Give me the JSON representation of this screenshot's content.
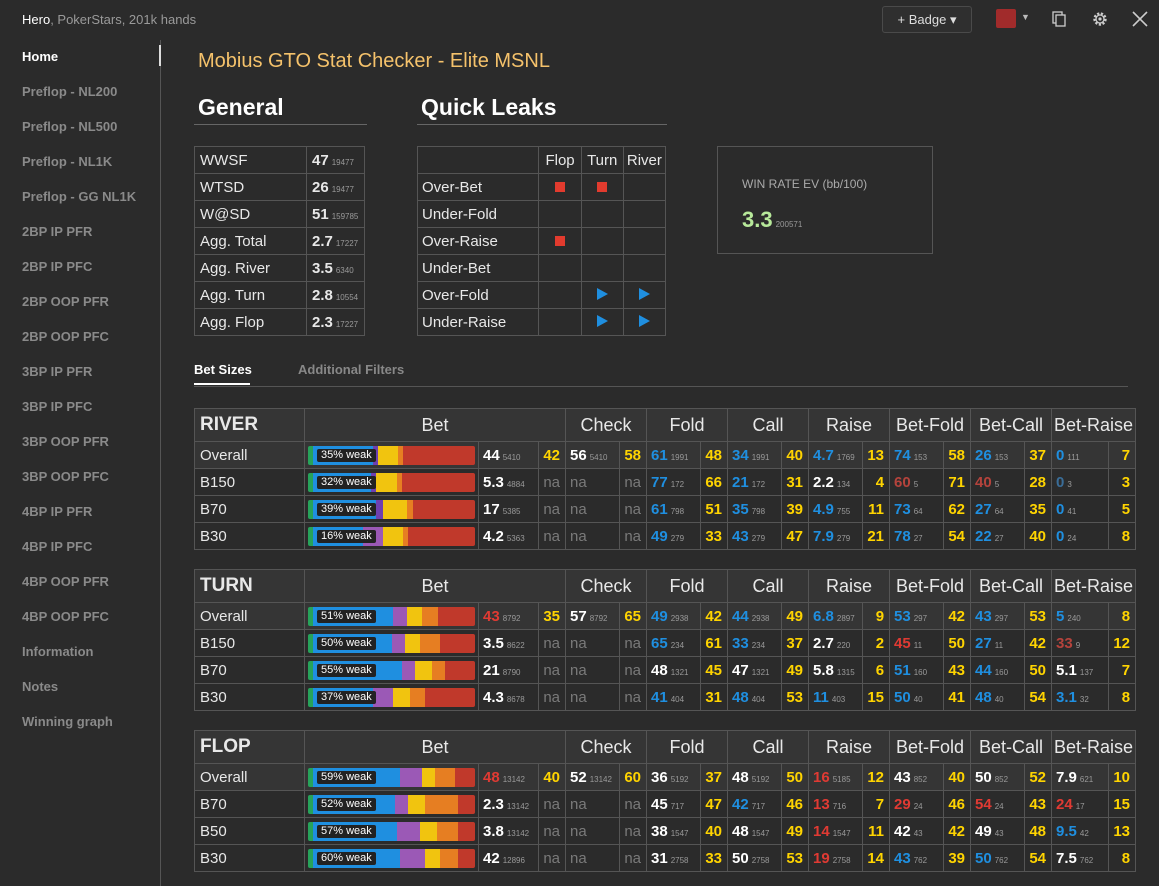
{
  "header": {
    "player": "Hero",
    "player_sub": ", PokerStars, 201k hands",
    "badge_label": "+ Badge ▾",
    "badge_color": "#a12b2b",
    "icons": [
      "copy-icon",
      "gear-icon",
      "close-icon"
    ]
  },
  "sidebar": {
    "items": [
      "Home",
      "Preflop - NL200",
      "Preflop - NL500",
      "Preflop - NL1K",
      "Preflop - GG NL1K",
      "2BP IP PFR",
      "2BP IP PFC",
      "2BP OOP PFR",
      "2BP OOP PFC",
      "3BP IP PFR",
      "3BP IP PFC",
      "3BP OOP PFR",
      "3BP OOP PFC",
      "4BP IP PFR",
      "4BP IP PFC",
      "4BP OOP PFR",
      "4BP OOP PFC",
      "Information",
      "Notes",
      "Winning graph"
    ],
    "active": "Home"
  },
  "page_title": "Mobius GTO Stat Checker - Elite MSNL",
  "general": {
    "title": "General",
    "rows": [
      {
        "label": "WWSF",
        "value": "47",
        "n": "19477"
      },
      {
        "label": "WTSD",
        "value": "26",
        "n": "19477"
      },
      {
        "label": "W@SD",
        "value": "51",
        "n": "159785"
      },
      {
        "label": "Agg. Total",
        "value": "2.7",
        "n": "17227"
      },
      {
        "label": "Agg. River",
        "value": "3.5",
        "n": "6340"
      },
      {
        "label": "Agg. Turn",
        "value": "2.8",
        "n": "10554"
      },
      {
        "label": "Agg. Flop",
        "value": "2.3",
        "n": "17227"
      }
    ]
  },
  "quick_leaks": {
    "title": "Quick Leaks",
    "columns": [
      "Flop",
      "Turn",
      "River"
    ],
    "rows": [
      {
        "label": "Over-Bet",
        "marks": [
          "sq",
          "sq",
          ""
        ]
      },
      {
        "label": "Under-Fold",
        "marks": [
          "",
          "",
          ""
        ]
      },
      {
        "label": "Over-Raise",
        "marks": [
          "sq",
          "",
          ""
        ]
      },
      {
        "label": "Under-Bet",
        "marks": [
          "",
          "",
          ""
        ]
      },
      {
        "label": "Over-Fold",
        "marks": [
          "",
          "tri",
          "tri"
        ]
      },
      {
        "label": "Under-Raise",
        "marks": [
          "",
          "tri",
          "tri"
        ]
      }
    ]
  },
  "winrate": {
    "label": "WIN RATE EV (bb/100)",
    "value": "3.3",
    "n": "200571"
  },
  "tabs": {
    "active": "Bet Sizes",
    "other": "Additional Filters"
  },
  "stat_headers": [
    "Bet",
    "Check",
    "Fold",
    "Call",
    "Raise",
    "Bet-Fold",
    "Bet-Call",
    "Bet-Raise"
  ],
  "streets": [
    {
      "name": "RIVER",
      "rows": [
        {
          "label": "Overall",
          "weak": "35% weak",
          "bet": [
            "44",
            "5410",
            "w",
            "42"
          ],
          "check": [
            "56",
            "5410",
            "w",
            "58"
          ],
          "fold": [
            "61",
            "1991",
            "b",
            "48"
          ],
          "call": [
            "34",
            "1991",
            "b",
            "40"
          ],
          "raise": [
            "4.7",
            "1769",
            "b",
            "13"
          ],
          "betfold": [
            "74",
            "153",
            "b",
            "58"
          ],
          "betcall": [
            "26",
            "153",
            "b",
            "37"
          ],
          "betraise": [
            "0",
            "111",
            "b",
            "7"
          ]
        },
        {
          "label": "B150",
          "weak": "32% weak",
          "bet": [
            "5.3",
            "4884",
            "w",
            "na"
          ],
          "check": [
            "na",
            "",
            "na",
            "na"
          ],
          "fold": [
            "77",
            "172",
            "b",
            "66"
          ],
          "call": [
            "21",
            "172",
            "b",
            "31"
          ],
          "raise": [
            "2.2",
            "134",
            "w",
            "4"
          ],
          "betfold": [
            "60",
            "5",
            "dr",
            "71"
          ],
          "betcall": [
            "40",
            "5",
            "dr",
            "28"
          ],
          "betraise": [
            "0",
            "3",
            "gb",
            "3"
          ]
        },
        {
          "label": "B70",
          "weak": "39% weak",
          "bet": [
            "17",
            "5385",
            "w",
            "na"
          ],
          "check": [
            "na",
            "",
            "na",
            "na"
          ],
          "fold": [
            "61",
            "798",
            "b",
            "51"
          ],
          "call": [
            "35",
            "798",
            "b",
            "39"
          ],
          "raise": [
            "4.9",
            "755",
            "b",
            "11"
          ],
          "betfold": [
            "73",
            "64",
            "b",
            "62"
          ],
          "betcall": [
            "27",
            "64",
            "b",
            "35"
          ],
          "betraise": [
            "0",
            "41",
            "b",
            "5"
          ]
        },
        {
          "label": "B30",
          "weak": "16% weak",
          "bet": [
            "4.2",
            "5363",
            "w",
            "na"
          ],
          "check": [
            "na",
            "",
            "na",
            "na"
          ],
          "fold": [
            "49",
            "279",
            "b",
            "33"
          ],
          "call": [
            "43",
            "279",
            "b",
            "47"
          ],
          "raise": [
            "7.9",
            "279",
            "b",
            "21"
          ],
          "betfold": [
            "78",
            "27",
            "b",
            "54"
          ],
          "betcall": [
            "22",
            "27",
            "b",
            "40"
          ],
          "betraise": [
            "0",
            "24",
            "b",
            "8"
          ]
        }
      ]
    },
    {
      "name": "TURN",
      "rows": [
        {
          "label": "Overall",
          "weak": "51% weak",
          "bet": [
            "43",
            "8792",
            "r",
            "35"
          ],
          "check": [
            "57",
            "8792",
            "w",
            "65"
          ],
          "fold": [
            "49",
            "2938",
            "b",
            "42"
          ],
          "call": [
            "44",
            "2938",
            "b",
            "49"
          ],
          "raise": [
            "6.8",
            "2897",
            "b",
            "9"
          ],
          "betfold": [
            "53",
            "297",
            "b",
            "42"
          ],
          "betcall": [
            "43",
            "297",
            "b",
            "53"
          ],
          "betraise": [
            "5",
            "240",
            "b",
            "8"
          ]
        },
        {
          "label": "B150",
          "weak": "50% weak",
          "bet": [
            "3.5",
            "8622",
            "w",
            "na"
          ],
          "check": [
            "na",
            "",
            "na",
            "na"
          ],
          "fold": [
            "65",
            "234",
            "b",
            "61"
          ],
          "call": [
            "33",
            "234",
            "b",
            "37"
          ],
          "raise": [
            "2.7",
            "220",
            "w",
            "2"
          ],
          "betfold": [
            "45",
            "11",
            "r",
            "50"
          ],
          "betcall": [
            "27",
            "11",
            "b",
            "42"
          ],
          "betraise": [
            "33",
            "9",
            "dr",
            "12"
          ]
        },
        {
          "label": "B70",
          "weak": "55% weak",
          "bet": [
            "21",
            "8790",
            "w",
            "na"
          ],
          "check": [
            "na",
            "",
            "na",
            "na"
          ],
          "fold": [
            "48",
            "1321",
            "w",
            "45"
          ],
          "call": [
            "47",
            "1321",
            "w",
            "49"
          ],
          "raise": [
            "5.8",
            "1315",
            "w",
            "6"
          ],
          "betfold": [
            "51",
            "160",
            "b",
            "43"
          ],
          "betcall": [
            "44",
            "160",
            "b",
            "50"
          ],
          "betraise": [
            "5.1",
            "137",
            "w",
            "7"
          ]
        },
        {
          "label": "B30",
          "weak": "37% weak",
          "bet": [
            "4.3",
            "8678",
            "w",
            "na"
          ],
          "check": [
            "na",
            "",
            "na",
            "na"
          ],
          "fold": [
            "41",
            "404",
            "b",
            "31"
          ],
          "call": [
            "48",
            "404",
            "b",
            "53"
          ],
          "raise": [
            "11",
            "403",
            "b",
            "15"
          ],
          "betfold": [
            "50",
            "40",
            "b",
            "41"
          ],
          "betcall": [
            "48",
            "40",
            "b",
            "54"
          ],
          "betraise": [
            "3.1",
            "32",
            "b",
            "8"
          ]
        }
      ]
    },
    {
      "name": "FLOP",
      "rows": [
        {
          "label": "Overall",
          "weak": "59% weak",
          "bet": [
            "48",
            "13142",
            "r",
            "40"
          ],
          "check": [
            "52",
            "13142",
            "w",
            "60"
          ],
          "fold": [
            "36",
            "5192",
            "w",
            "37"
          ],
          "call": [
            "48",
            "5192",
            "w",
            "50"
          ],
          "raise": [
            "16",
            "5185",
            "r",
            "12"
          ],
          "betfold": [
            "43",
            "852",
            "w",
            "40"
          ],
          "betcall": [
            "50",
            "852",
            "w",
            "52"
          ],
          "betraise": [
            "7.9",
            "621",
            "w",
            "10"
          ]
        },
        {
          "label": "B70",
          "weak": "52% weak",
          "bet": [
            "2.3",
            "13142",
            "w",
            "na"
          ],
          "check": [
            "na",
            "",
            "na",
            "na"
          ],
          "fold": [
            "45",
            "717",
            "w",
            "47"
          ],
          "call": [
            "42",
            "717",
            "b",
            "46"
          ],
          "raise": [
            "13",
            "716",
            "r",
            "7"
          ],
          "betfold": [
            "29",
            "24",
            "r",
            "46"
          ],
          "betcall": [
            "54",
            "24",
            "r",
            "43"
          ],
          "betraise": [
            "24",
            "17",
            "r",
            "15"
          ]
        },
        {
          "label": "B50",
          "weak": "57% weak",
          "bet": [
            "3.8",
            "13142",
            "w",
            "na"
          ],
          "check": [
            "na",
            "",
            "na",
            "na"
          ],
          "fold": [
            "38",
            "1547",
            "w",
            "40"
          ],
          "call": [
            "48",
            "1547",
            "w",
            "49"
          ],
          "raise": [
            "14",
            "1547",
            "r",
            "11"
          ],
          "betfold": [
            "42",
            "43",
            "w",
            "42"
          ],
          "betcall": [
            "49",
            "43",
            "w",
            "48"
          ],
          "betraise": [
            "9.5",
            "42",
            "b",
            "13"
          ]
        },
        {
          "label": "B30",
          "weak": "60% weak",
          "bet": [
            "42",
            "12896",
            "w",
            "na"
          ],
          "check": [
            "na",
            "",
            "na",
            "na"
          ],
          "fold": [
            "31",
            "2758",
            "w",
            "33"
          ],
          "call": [
            "50",
            "2758",
            "w",
            "53"
          ],
          "raise": [
            "19",
            "2758",
            "r",
            "14"
          ],
          "betfold": [
            "43",
            "762",
            "b",
            "39"
          ],
          "betcall": [
            "50",
            "762",
            "b",
            "54"
          ],
          "betraise": [
            "7.5",
            "762",
            "w",
            "8"
          ]
        }
      ]
    }
  ],
  "range_bars": {
    "RIVER": [
      [
        [
          "#27a35a",
          3
        ],
        [
          "#1f8fe0",
          36
        ],
        [
          "#6e3fb0",
          3
        ],
        [
          "#f1c40f",
          12
        ],
        [
          "#e67e22",
          3
        ],
        [
          "#c0392b",
          43
        ]
      ],
      [
        [
          "#27a35a",
          3
        ],
        [
          "#1f8fe0",
          35
        ],
        [
          "#6e3fb0",
          3
        ],
        [
          "#f1c40f",
          12
        ],
        [
          "#e67e22",
          3
        ],
        [
          "#c0392b",
          44
        ]
      ],
      [
        [
          "#27a35a",
          3
        ],
        [
          "#1f8fe0",
          38
        ],
        [
          "#6e3fb0",
          4
        ],
        [
          "#f1c40f",
          14
        ],
        [
          "#e67e22",
          4
        ],
        [
          "#c0392b",
          37
        ]
      ],
      [
        [
          "#27a35a",
          3
        ],
        [
          "#1f8fe0",
          30
        ],
        [
          "#9b59b6",
          12
        ],
        [
          "#f1c40f",
          12
        ],
        [
          "#e67e22",
          3
        ],
        [
          "#c0392b",
          40
        ]
      ]
    ],
    "TURN": [
      [
        [
          "#27a35a",
          3
        ],
        [
          "#1f8fe0",
          48
        ],
        [
          "#9b59b6",
          8
        ],
        [
          "#f1c40f",
          9
        ],
        [
          "#e67e22",
          10
        ],
        [
          "#c0392b",
          22
        ]
      ],
      [
        [
          "#27a35a",
          3
        ],
        [
          "#1f8fe0",
          47
        ],
        [
          "#9b59b6",
          8
        ],
        [
          "#f1c40f",
          9
        ],
        [
          "#e67e22",
          12
        ],
        [
          "#c0392b",
          21
        ]
      ],
      [
        [
          "#27a35a",
          3
        ],
        [
          "#1f8fe0",
          53
        ],
        [
          "#9b59b6",
          8
        ],
        [
          "#f1c40f",
          10
        ],
        [
          "#e67e22",
          8
        ],
        [
          "#c0392b",
          18
        ]
      ],
      [
        [
          "#27a35a",
          3
        ],
        [
          "#1f8fe0",
          36
        ],
        [
          "#9b59b6",
          12
        ],
        [
          "#f1c40f",
          10
        ],
        [
          "#e67e22",
          9
        ],
        [
          "#c0392b",
          30
        ]
      ]
    ],
    "FLOP": [
      [
        [
          "#27a35a",
          3
        ],
        [
          "#1f8fe0",
          52
        ],
        [
          "#9b59b6",
          13
        ],
        [
          "#f1c40f",
          8
        ],
        [
          "#e67e22",
          12
        ],
        [
          "#c0392b",
          12
        ]
      ],
      [
        [
          "#27a35a",
          3
        ],
        [
          "#1f8fe0",
          49
        ],
        [
          "#9b59b6",
          8
        ],
        [
          "#f1c40f",
          10
        ],
        [
          "#e67e22",
          20
        ],
        [
          "#c0392b",
          10
        ]
      ],
      [
        [
          "#27a35a",
          3
        ],
        [
          "#1f8fe0",
          50
        ],
        [
          "#9b59b6",
          14
        ],
        [
          "#f1c40f",
          10
        ],
        [
          "#e67e22",
          13
        ],
        [
          "#c0392b",
          10
        ]
      ],
      [
        [
          "#27a35a",
          3
        ],
        [
          "#1f8fe0",
          52
        ],
        [
          "#9b59b6",
          15
        ],
        [
          "#f1c40f",
          9
        ],
        [
          "#e67e22",
          11
        ],
        [
          "#c0392b",
          10
        ]
      ]
    ]
  }
}
